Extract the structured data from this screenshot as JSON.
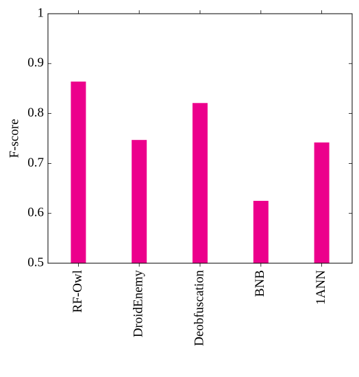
{
  "chart_data": {
    "type": "bar",
    "y_label": "F-score",
    "categories": [
      "RF-Owl",
      "DroidEnemy",
      "Deobfuscation",
      "BNB",
      "1ANN"
    ],
    "values": [
      0.864,
      0.747,
      0.821,
      0.625,
      0.742
    ],
    "color": "#ec008c",
    "ylim": [
      0.5,
      1
    ],
    "yticks": [
      0.5,
      0.6,
      0.7,
      0.8,
      0.9,
      1
    ],
    "grid": false
  }
}
